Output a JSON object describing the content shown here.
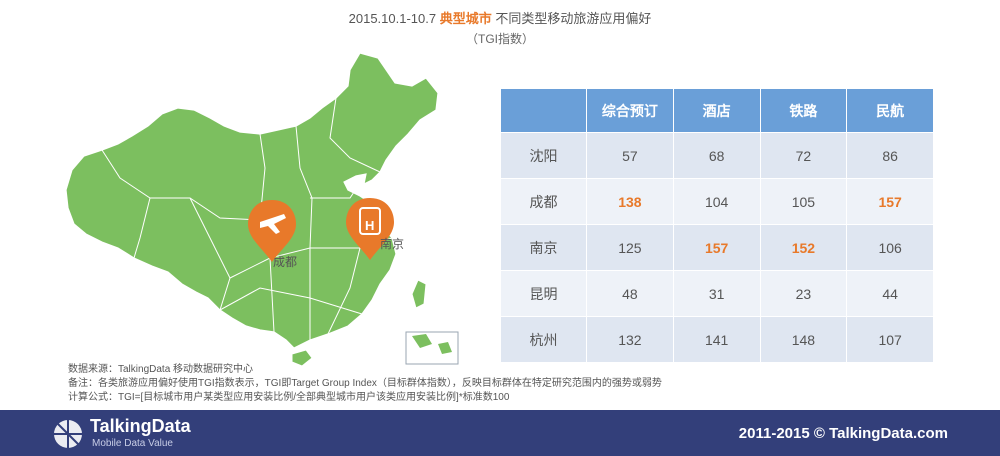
{
  "title": {
    "prefix": "2015.10.1-10.7",
    "highlight": "典型城市",
    "suffix": "不同类型移动旅游应用偏好",
    "subtitle": "（TGI指数）"
  },
  "map": {
    "land_color": "#7cbf5f",
    "border_color": "#ffffff",
    "pin_color": "#e8792a",
    "pins": [
      {
        "city": "成都",
        "icon": "airplane-icon"
      },
      {
        "city": "南京",
        "icon": "train-hotel-icon"
      }
    ]
  },
  "chart_data": {
    "type": "table",
    "columns": [
      "",
      "综合预订",
      "酒店",
      "铁路",
      "民航"
    ],
    "rows": [
      {
        "city": "沈阳",
        "values": [
          57,
          68,
          72,
          86
        ]
      },
      {
        "city": "成都",
        "values": [
          138,
          104,
          105,
          157
        ]
      },
      {
        "city": "南京",
        "values": [
          125,
          157,
          152,
          106
        ]
      },
      {
        "city": "昆明",
        "values": [
          48,
          31,
          23,
          44
        ]
      },
      {
        "city": "杭州",
        "values": [
          132,
          141,
          148,
          107
        ]
      }
    ],
    "highlighted": [
      [
        1,
        0
      ],
      [
        1,
        3
      ],
      [
        2,
        1
      ],
      [
        2,
        2
      ]
    ],
    "header_color": "#6a9fd8",
    "highlight_color": "#e8792a"
  },
  "notes": [
    "数据来源：TalkingData 移动数据研究中心",
    "备注：各类旅游应用偏好使用TGI指数表示，TGI即Target Group Index（目标群体指数），反映目标群体在特定研究范围内的强势或弱势",
    "计算公式：TGI=[目标城市用户某类型应用安装比例/全部典型城市用户该类应用安装比例]*标准数100"
  ],
  "footer": {
    "brand": "TalkingData",
    "tagline": "Mobile Data Value",
    "copyright": "2011-2015 © TalkingData.com",
    "bg_color": "#333f7a"
  }
}
